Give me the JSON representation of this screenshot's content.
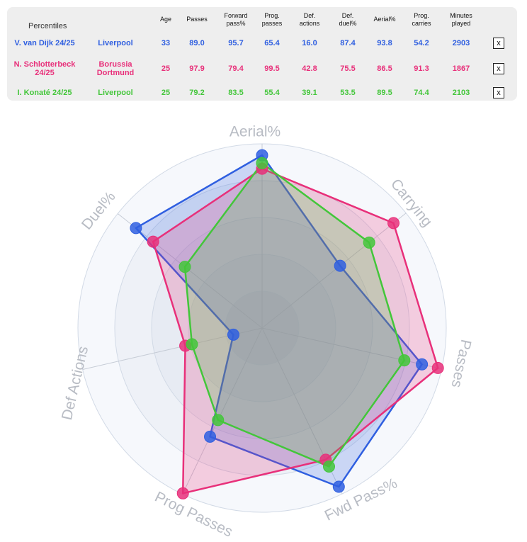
{
  "table": {
    "title": "Percentiles",
    "headers": [
      "Age",
      "Passes",
      "Forward pass%",
      "Prog. passes",
      "Def. actions",
      "Def. duel%",
      "Aerial%",
      "Prog. carries",
      "Minutes played"
    ],
    "remove_label": "x",
    "rows": [
      {
        "player": "V. van Dijk 24/25",
        "team": "Liverpool",
        "color": "#2f5fe0",
        "values": [
          "33",
          "89.0",
          "95.7",
          "65.4",
          "16.0",
          "87.4",
          "93.8",
          "54.2",
          "2903"
        ]
      },
      {
        "player": "N. Schlotterbeck 24/25",
        "team": "Borussia Dortmund",
        "color": "#e8307a",
        "values": [
          "25",
          "97.9",
          "79.4",
          "99.5",
          "42.8",
          "75.5",
          "86.5",
          "91.3",
          "1867"
        ]
      },
      {
        "player": "I. Konaté 24/25",
        "team": "Liverpool",
        "color": "#43c63a",
        "values": [
          "25",
          "79.2",
          "83.5",
          "55.4",
          "39.1",
          "53.5",
          "89.5",
          "74.4",
          "2103"
        ]
      }
    ]
  },
  "chart_data": {
    "type": "radar",
    "axes": [
      "Aerial%",
      "Carrying",
      "Passes",
      "Fwd Pass%",
      "Prog Passes",
      "Def Actions",
      "Duel%"
    ],
    "range": [
      0,
      100
    ],
    "series": [
      {
        "name": "V. van Dijk 24/25",
        "color": "#2f5fe0",
        "values": [
          93.8,
          54.2,
          89.0,
          95.7,
          65.4,
          16.0,
          87.4
        ]
      },
      {
        "name": "N. Schlotterbeck 24/25",
        "color": "#e8307a",
        "values": [
          86.5,
          91.3,
          97.9,
          79.4,
          99.5,
          42.8,
          75.5
        ]
      },
      {
        "name": "I. Konaté 24/25",
        "color": "#43c63a",
        "values": [
          89.5,
          74.4,
          79.2,
          83.5,
          55.4,
          39.1,
          53.5
        ]
      }
    ]
  }
}
